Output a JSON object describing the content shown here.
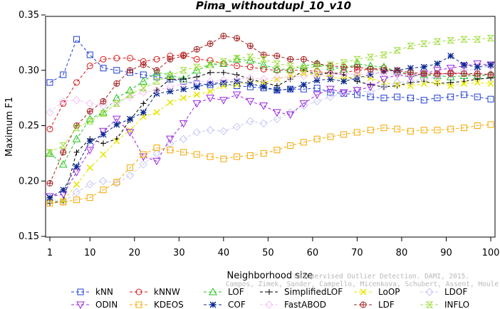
{
  "chart_data": {
    "type": "line",
    "title": "Pima_withoutdupl_10_v10",
    "xlabel": "Neighborhood size",
    "ylabel": "Maximum F1",
    "xlim": [
      1,
      100
    ],
    "ylim": [
      0.15,
      0.35
    ],
    "x_ticks": [
      "1",
      "10",
      "20",
      "30",
      "40",
      "50",
      "60",
      "70",
      "80",
      "90",
      "100"
    ],
    "y_ticks": [
      "0.15",
      "0.20",
      "0.25",
      "0.30",
      "0.35"
    ],
    "grid": false,
    "legend_position": "bottom",
    "x_start": 1,
    "x_step": 3,
    "series": [
      {
        "name": "kNN",
        "color": "#1f3fd1",
        "marker": "square",
        "values": [
          0.289,
          0.296,
          0.328,
          0.314,
          0.302,
          0.3,
          0.298,
          0.296,
          0.294,
          0.292,
          0.29,
          0.288,
          0.287,
          0.288,
          0.286,
          0.285,
          0.284,
          0.282,
          0.283,
          0.283,
          0.284,
          0.28,
          0.279,
          0.278,
          0.276,
          0.275,
          0.276,
          0.275,
          0.273,
          0.275,
          0.276,
          0.278,
          0.276,
          0.274
        ]
      },
      {
        "name": "kNNW",
        "color": "#d81b1b",
        "marker": "circle",
        "values": [
          0.247,
          0.27,
          0.289,
          0.304,
          0.31,
          0.311,
          0.311,
          0.308,
          0.31,
          0.313,
          0.314,
          0.31,
          0.309,
          0.306,
          0.304,
          0.303,
          0.301,
          0.3,
          0.3,
          0.3,
          0.299,
          0.297,
          0.298,
          0.3,
          0.301,
          0.302,
          0.298,
          0.296,
          0.296,
          0.296,
          0.298,
          0.297,
          0.295,
          0.296
        ]
      },
      {
        "name": "LOF",
        "color": "#22c322",
        "marker": "triangle-up",
        "values": [
          0.225,
          0.215,
          0.238,
          0.256,
          0.262,
          0.275,
          0.282,
          0.29,
          0.298,
          0.296,
          0.292,
          0.3,
          0.305,
          0.306,
          0.31,
          0.309,
          0.305,
          0.301,
          0.301,
          0.304,
          0.306,
          0.303,
          0.301,
          0.306,
          0.304,
          0.303,
          0.299,
          0.297,
          0.296,
          0.295,
          0.294,
          0.295,
          0.295,
          0.296
        ]
      },
      {
        "name": "SimplifiedLOF",
        "color": "#000000",
        "marker": "plus",
        "values": [
          0.18,
          0.182,
          0.226,
          0.238,
          0.234,
          0.238,
          0.255,
          0.27,
          0.282,
          0.292,
          0.292,
          0.294,
          0.298,
          0.298,
          0.296,
          0.292,
          0.289,
          0.286,
          0.292,
          0.3,
          0.296,
          0.298,
          0.296,
          0.29,
          0.287,
          0.285,
          0.286,
          0.289,
          0.29,
          0.288,
          0.289,
          0.29,
          0.292,
          0.293
        ]
      },
      {
        "name": "LoOP",
        "color": "#e6e600",
        "marker": "cross",
        "values": [
          0.183,
          0.182,
          0.197,
          0.212,
          0.224,
          0.236,
          0.246,
          0.258,
          0.262,
          0.271,
          0.275,
          0.278,
          0.281,
          0.286,
          0.287,
          0.29,
          0.289,
          0.292,
          0.295,
          0.297,
          0.296,
          0.294,
          0.292,
          0.295,
          0.293,
          0.289,
          0.287,
          0.286,
          0.288,
          0.289,
          0.286,
          0.288,
          0.289,
          0.288
        ]
      },
      {
        "name": "LDOF",
        "color": "#c8c8f5",
        "marker": "diamond",
        "values": [
          0.184,
          0.181,
          0.19,
          0.197,
          0.2,
          0.198,
          0.205,
          0.215,
          0.225,
          0.234,
          0.238,
          0.244,
          0.246,
          0.245,
          0.249,
          0.254,
          0.252,
          0.256,
          0.262,
          0.268,
          0.272,
          0.276,
          0.279,
          0.282,
          0.28,
          0.285,
          0.289,
          0.29,
          0.292,
          0.294,
          0.297,
          0.3,
          0.301,
          0.304
        ]
      },
      {
        "name": "ODIN",
        "color": "#9b28e0",
        "marker": "triangle-down",
        "values": [
          0.186,
          0.188,
          0.208,
          0.228,
          0.245,
          0.256,
          0.244,
          0.222,
          0.218,
          0.238,
          0.252,
          0.27,
          0.275,
          0.273,
          0.278,
          0.272,
          0.268,
          0.262,
          0.26,
          0.27,
          0.278,
          0.283,
          0.28,
          0.282,
          0.285,
          0.292,
          0.296,
          0.294,
          0.297,
          0.3,
          0.302,
          0.304,
          0.306,
          0.305
        ]
      },
      {
        "name": "KDEOS",
        "color": "#f5a800",
        "marker": "square",
        "values": [
          0.18,
          0.181,
          0.183,
          0.185,
          0.192,
          0.199,
          0.212,
          0.224,
          0.23,
          0.228,
          0.226,
          0.224,
          0.222,
          0.22,
          0.222,
          0.223,
          0.225,
          0.228,
          0.232,
          0.235,
          0.238,
          0.24,
          0.242,
          0.244,
          0.246,
          0.248,
          0.247,
          0.245,
          0.246,
          0.246,
          0.247,
          0.248,
          0.25,
          0.251
        ]
      },
      {
        "name": "COF",
        "color": "#0b2a8f",
        "marker": "asterisk",
        "values": [
          0.185,
          0.192,
          0.213,
          0.236,
          0.242,
          0.251,
          0.256,
          0.262,
          0.279,
          0.281,
          0.283,
          0.285,
          0.288,
          0.289,
          0.29,
          0.288,
          0.285,
          0.282,
          0.283,
          0.287,
          0.291,
          0.292,
          0.29,
          0.293,
          0.296,
          0.299,
          0.3,
          0.302,
          0.303,
          0.306,
          0.313,
          0.305,
          0.303,
          0.305
        ]
      },
      {
        "name": "FastABOD",
        "color": "#f5c2f5",
        "marker": "diamond",
        "values": [
          0.262,
          0.272,
          0.273,
          0.27,
          0.268,
          0.271,
          0.276,
          0.28,
          0.282,
          0.285,
          0.288,
          0.29,
          0.29,
          0.291,
          0.292,
          0.293,
          0.292,
          0.293,
          0.294,
          0.295,
          0.295,
          0.296,
          0.297,
          0.296,
          0.297,
          0.298,
          0.296,
          0.296,
          0.297,
          0.297,
          0.296,
          0.297,
          0.297,
          0.297
        ]
      },
      {
        "name": "LDF",
        "color": "#a32020",
        "marker": "circle-plus",
        "values": [
          0.198,
          0.226,
          0.25,
          0.263,
          0.272,
          0.288,
          0.3,
          0.305,
          0.3,
          0.31,
          0.313,
          0.319,
          0.324,
          0.331,
          0.329,
          0.322,
          0.314,
          0.313,
          0.31,
          0.31,
          0.306,
          0.304,
          0.303,
          0.303,
          0.301,
          0.3,
          0.3,
          0.298,
          0.297,
          0.297,
          0.297,
          0.297,
          0.297,
          0.296
        ]
      },
      {
        "name": "INFLO",
        "color": "#9fdc3c",
        "marker": "hourglass",
        "values": [
          0.226,
          0.232,
          0.248,
          0.254,
          0.261,
          0.27,
          0.278,
          0.284,
          0.29,
          0.295,
          0.3,
          0.303,
          0.305,
          0.308,
          0.311,
          0.312,
          0.31,
          0.306,
          0.304,
          0.302,
          0.303,
          0.305,
          0.307,
          0.31,
          0.312,
          0.314,
          0.318,
          0.322,
          0.324,
          0.326,
          0.327,
          0.328,
          0.328,
          0.329
        ]
      }
    ],
    "watermark_lines": [
      "Campos, Zimek, Sander, Campello, Micenkova, Schubert, Assent, Houle",
      "Unsupervised Outlier Detection. DAMI, 2015."
    ]
  }
}
